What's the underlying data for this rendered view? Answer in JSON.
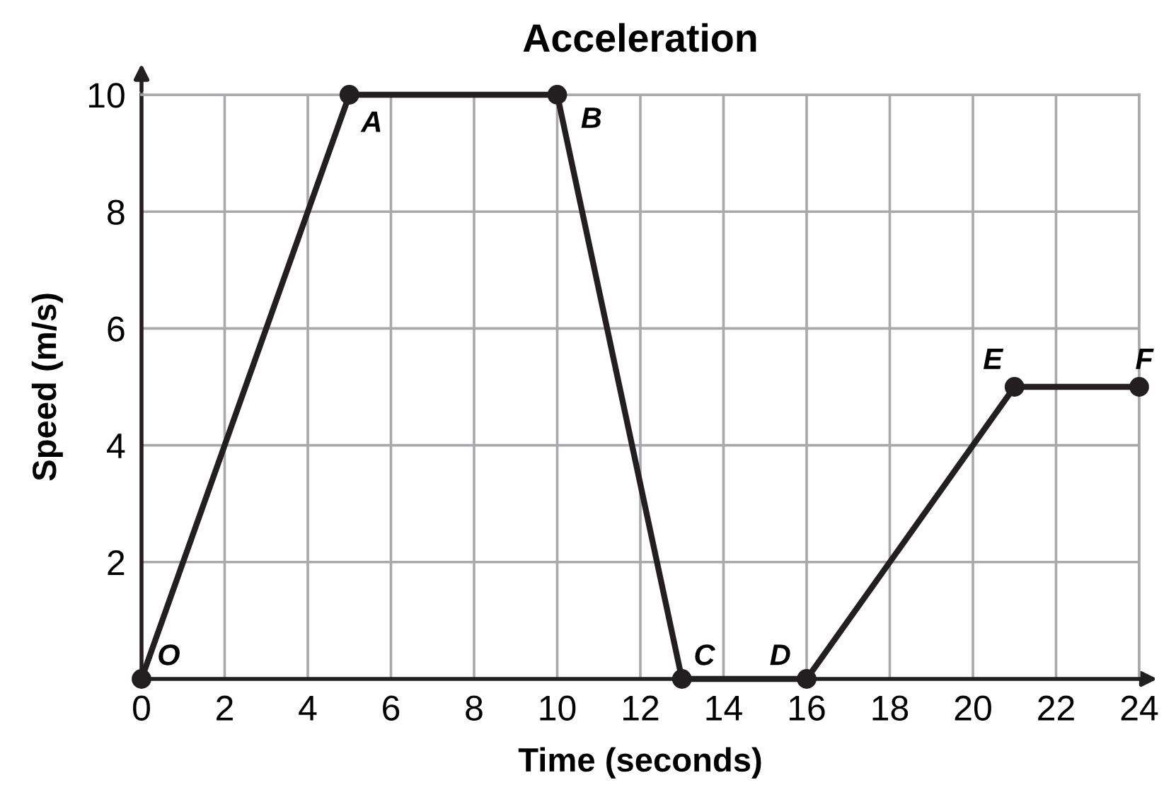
{
  "chart_data": {
    "type": "line",
    "title": "Acceleration",
    "xlabel": "Time (seconds)",
    "ylabel": "Speed (m/s)",
    "x": [
      0,
      5,
      10,
      13,
      16,
      21,
      24
    ],
    "series": [
      {
        "color": "#231f20",
        "values": [
          0,
          10,
          10,
          0,
          0,
          5,
          5
        ]
      }
    ],
    "xlim": [
      0,
      24
    ],
    "ylim": [
      0,
      10
    ],
    "xticks": [
      0,
      2,
      4,
      6,
      8,
      10,
      12,
      14,
      16,
      18,
      20,
      22,
      24
    ],
    "yticks": [
      2,
      4,
      6,
      8,
      10
    ],
    "grid": true,
    "marker": "circle",
    "line_style": "solid",
    "annotations": [
      {
        "text": "O",
        "x": 0,
        "y": 0
      },
      {
        "text": "A",
        "x": 5,
        "y": 10
      },
      {
        "text": "B",
        "x": 10,
        "y": 10
      },
      {
        "text": "C",
        "x": 13,
        "y": 0
      },
      {
        "text": "D",
        "x": 16,
        "y": 0
      },
      {
        "text": "E",
        "x": 21,
        "y": 5
      },
      {
        "text": "F",
        "x": 24,
        "y": 5
      }
    ]
  }
}
